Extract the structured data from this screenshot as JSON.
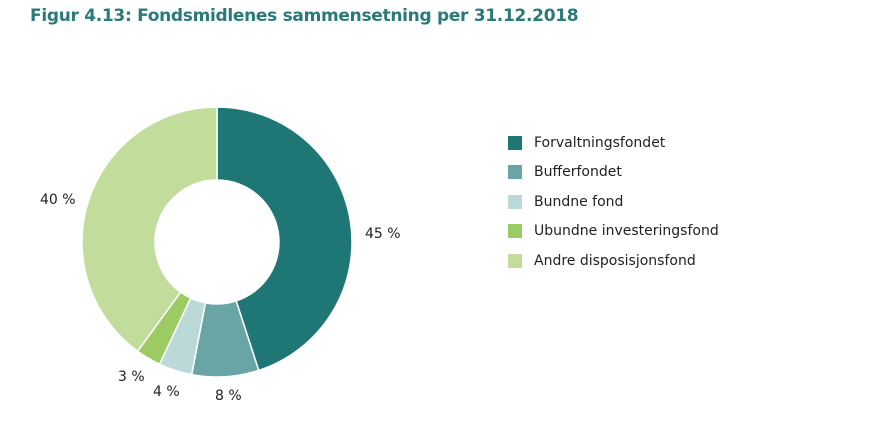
{
  "chart_data": {
    "type": "pie",
    "title": "Figur 4.13: Fondsmidlenes sammensetning per 31.12.2018",
    "donut": true,
    "legend_position": "right",
    "categories": [
      "Forvaltningsfondet",
      "Bufferfondet",
      "Bundne fond",
      "Ubundne investeringsfond",
      "Andre disposisjonsfond"
    ],
    "values": [
      45,
      8,
      4,
      3,
      40
    ],
    "data_labels": [
      "45 %",
      "8 %",
      "4 %",
      "3 %",
      "40 %"
    ],
    "colors": [
      "#1f7775",
      "#6aa5a6",
      "#bcd9da",
      "#9ccb64",
      "#c1dc9b"
    ]
  }
}
